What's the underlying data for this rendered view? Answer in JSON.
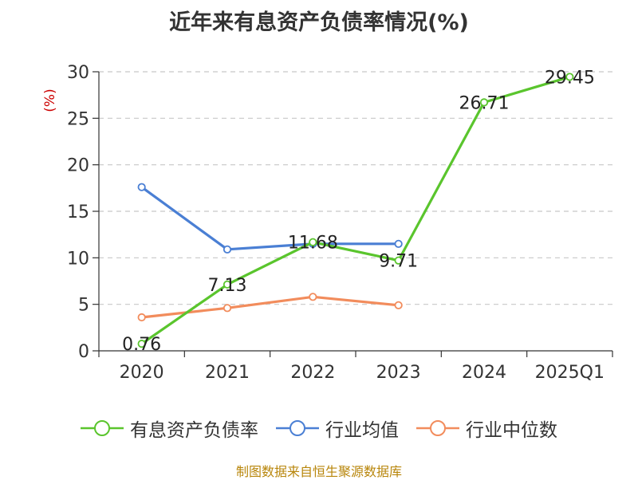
{
  "chart_data": {
    "type": "line",
    "title": "近年来有息资产负债率情况(%)",
    "ylabel": "(%)",
    "xlabel": "",
    "categories": [
      "2020",
      "2021",
      "2022",
      "2023",
      "2024",
      "2025Q1"
    ],
    "ylim": [
      0,
      30
    ],
    "yticks": [
      0,
      5,
      10,
      15,
      20,
      25,
      30
    ],
    "grid": true,
    "legend_position": "bottom",
    "series": [
      {
        "name": "有息资产负债率",
        "color": "#5ac52d",
        "values": [
          0.76,
          7.13,
          11.68,
          9.71,
          26.71,
          29.45
        ],
        "labels": [
          "0.76",
          "7.13",
          "11.68",
          "9.71",
          "26.71",
          "29.45"
        ]
      },
      {
        "name": "行业均值",
        "color": "#4a7fd4",
        "values": [
          17.6,
          10.9,
          11.5,
          11.5,
          null,
          null
        ]
      },
      {
        "name": "行业中位数",
        "color": "#f28c5c",
        "values": [
          3.6,
          4.6,
          5.8,
          4.9,
          null,
          null
        ]
      }
    ]
  },
  "source": "制图数据来自恒生聚源数据库"
}
